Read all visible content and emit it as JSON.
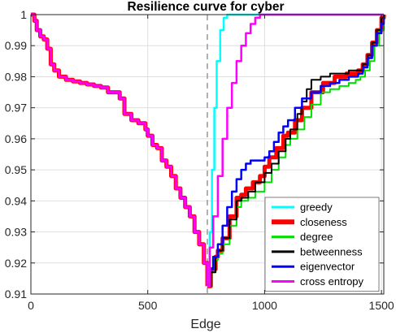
{
  "chart_data": {
    "type": "line",
    "title": "Resilience curve for cyber",
    "xlabel": "Edge",
    "ylabel": "",
    "xlim": [
      0,
      1510
    ],
    "ylim": [
      0.91,
      1.0
    ],
    "xticks": [
      0,
      500,
      1000,
      1500
    ],
    "yticks": [
      0.91,
      0.92,
      0.93,
      0.94,
      0.95,
      0.96,
      0.97,
      0.98,
      0.99,
      1
    ],
    "xtick_labels": [
      "0",
      "500",
      "1000",
      "1500"
    ],
    "ytick_labels": [
      "0.91",
      "0.92",
      "0.93",
      "0.94",
      "0.95",
      "0.96",
      "0.97",
      "0.98",
      "0.99",
      "1"
    ],
    "grid": true,
    "legend_position": "bottom-right",
    "vline_x": 755,
    "shared_prefix": {
      "x": [
        0,
        15,
        25,
        40,
        55,
        70,
        85,
        100,
        120,
        150,
        180,
        210,
        240,
        270,
        300,
        330,
        350,
        360,
        380,
        400,
        430,
        460,
        490,
        500,
        520,
        540,
        560,
        580,
        600,
        620,
        640,
        660,
        680,
        700,
        720,
        740,
        755
      ],
      "y": [
        1.0,
        0.998,
        0.995,
        0.993,
        0.992,
        0.989,
        0.984,
        0.982,
        0.98,
        0.979,
        0.9785,
        0.978,
        0.9775,
        0.977,
        0.9765,
        0.975,
        0.975,
        0.975,
        0.973,
        0.968,
        0.966,
        0.965,
        0.963,
        0.961,
        0.958,
        0.957,
        0.953,
        0.951,
        0.948,
        0.944,
        0.941,
        0.938,
        0.935,
        0.93,
        0.926,
        0.92,
        0.9125
      ]
    },
    "series": [
      {
        "name": "greedy",
        "color": "#00ffff",
        "width": 2.5,
        "x": [
          755,
          765,
          775,
          785,
          795,
          810,
          825,
          840,
          1510
        ],
        "y": [
          0.9125,
          0.93,
          0.95,
          0.97,
          0.985,
          0.995,
          0.999,
          1.0,
          1.0
        ]
      },
      {
        "name": "closeness",
        "color": "#ff0000",
        "width": 5,
        "x": [
          755,
          770,
          790,
          800,
          820,
          850,
          880,
          900,
          920,
          950,
          980,
          1000,
          1020,
          1050,
          1080,
          1100,
          1130,
          1160,
          1200,
          1250,
          1300,
          1350,
          1400,
          1420,
          1440,
          1460,
          1480,
          1500,
          1510
        ],
        "y": [
          0.9125,
          0.918,
          0.922,
          0.924,
          0.928,
          0.935,
          0.941,
          0.942,
          0.944,
          0.946,
          0.948,
          0.951,
          0.954,
          0.957,
          0.961,
          0.962,
          0.966,
          0.97,
          0.975,
          0.978,
          0.98,
          0.981,
          0.982,
          0.984,
          0.987,
          0.991,
          0.995,
          0.999,
          1.0
        ]
      },
      {
        "name": "degree",
        "color": "#00e000",
        "width": 2,
        "x": [
          755,
          770,
          790,
          800,
          820,
          850,
          880,
          900,
          930,
          960,
          1000,
          1030,
          1060,
          1090,
          1110,
          1140,
          1170,
          1200,
          1240,
          1280,
          1320,
          1360,
          1390,
          1410,
          1430,
          1450,
          1470,
          1490,
          1510
        ],
        "y": [
          0.9125,
          0.917,
          0.921,
          0.923,
          0.926,
          0.932,
          0.938,
          0.94,
          0.941,
          0.943,
          0.946,
          0.95,
          0.954,
          0.958,
          0.96,
          0.963,
          0.967,
          0.971,
          0.975,
          0.976,
          0.977,
          0.978,
          0.979,
          0.98,
          0.982,
          0.985,
          0.99,
          0.995,
          1.0
        ]
      },
      {
        "name": "betweenness",
        "color": "#000000",
        "width": 2,
        "x": [
          755,
          770,
          790,
          800,
          820,
          850,
          880,
          900,
          930,
          960,
          1000,
          1030,
          1060,
          1090,
          1110,
          1140,
          1160,
          1180,
          1200,
          1240,
          1280,
          1320,
          1360,
          1400,
          1420,
          1440,
          1460,
          1480,
          1500,
          1510
        ],
        "y": [
          0.9125,
          0.917,
          0.922,
          0.924,
          0.928,
          0.934,
          0.94,
          0.941,
          0.943,
          0.946,
          0.949,
          0.952,
          0.956,
          0.96,
          0.963,
          0.968,
          0.972,
          0.976,
          0.979,
          0.98,
          0.981,
          0.981,
          0.982,
          0.982,
          0.984,
          0.987,
          0.991,
          0.995,
          0.999,
          1.0
        ]
      },
      {
        "name": "eigenvector",
        "color": "#0000ff",
        "width": 2.5,
        "x": [
          755,
          765,
          780,
          800,
          820,
          840,
          860,
          880,
          900,
          920,
          940,
          960,
          980,
          1000,
          1020,
          1040,
          1060,
          1080,
          1100,
          1130,
          1160,
          1200,
          1240,
          1280,
          1320,
          1360,
          1400,
          1420,
          1440,
          1460,
          1480,
          1500,
          1510
        ],
        "y": [
          0.9125,
          0.918,
          0.922,
          0.926,
          0.932,
          0.938,
          0.943,
          0.947,
          0.95,
          0.952,
          0.953,
          0.953,
          0.953,
          0.954,
          0.956,
          0.959,
          0.962,
          0.964,
          0.966,
          0.97,
          0.973,
          0.975,
          0.977,
          0.978,
          0.979,
          0.98,
          0.981,
          0.983,
          0.986,
          0.99,
          0.994,
          0.997,
          0.999
        ]
      },
      {
        "name": "cross entropy",
        "color": "#ff00ff",
        "width": 2.5,
        "x": [
          755,
          765,
          780,
          800,
          820,
          840,
          860,
          880,
          900,
          920,
          940,
          960,
          980,
          1000,
          1510
        ],
        "y": [
          0.9125,
          0.925,
          0.935,
          0.948,
          0.96,
          0.97,
          0.978,
          0.985,
          0.99,
          0.994,
          0.997,
          0.999,
          1.0,
          1.0,
          1.0
        ]
      }
    ]
  }
}
